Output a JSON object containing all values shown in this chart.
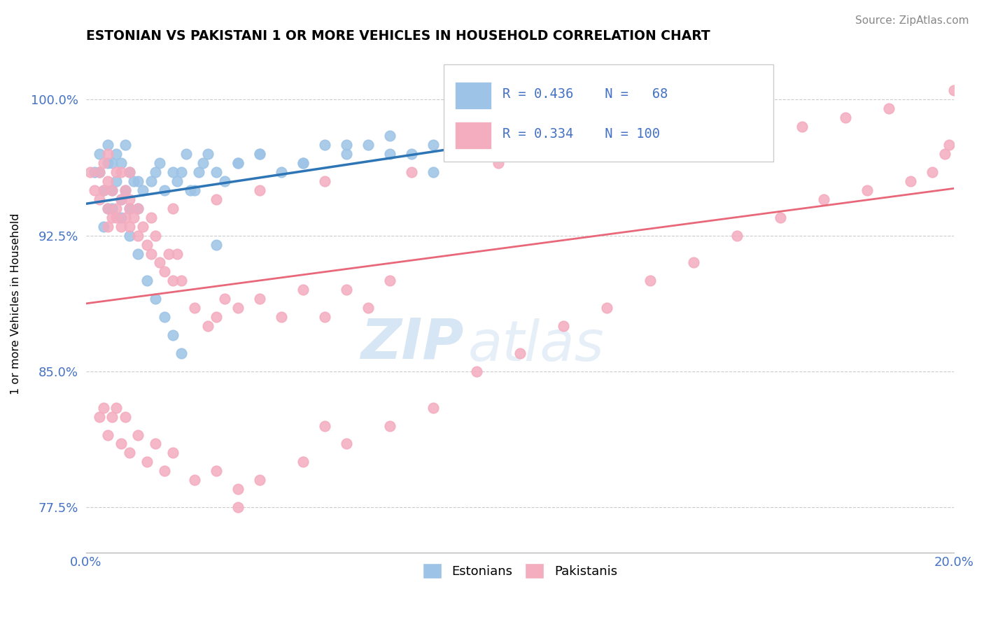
{
  "title": "ESTONIAN VS PAKISTANI 1 OR MORE VEHICLES IN HOUSEHOLD CORRELATION CHART",
  "source_text": "Source: ZipAtlas.com",
  "ylabel": "1 or more Vehicles in Household",
  "xlim": [
    0.0,
    20.0
  ],
  "ylim": [
    75.0,
    102.5
  ],
  "yticks": [
    77.5,
    85.0,
    92.5,
    100.0
  ],
  "ytick_labels": [
    "77.5%",
    "85.0%",
    "92.5%",
    "100.0%"
  ],
  "xticks": [
    0.0,
    5.0,
    10.0,
    15.0,
    20.0
  ],
  "xtick_labels": [
    "0.0%",
    "",
    "",
    "",
    "20.0%"
  ],
  "estonian_color": "#9DC3E6",
  "pakistani_color": "#F4ACBF",
  "estonian_line_color": "#2E75B6",
  "pakistani_line_color": "#E8687A",
  "watermark_text": "ZIPatlas",
  "watermark_color": "#C8DDF0",
  "estonian_x": [
    0.2,
    0.3,
    0.4,
    0.5,
    0.5,
    0.6,
    0.7,
    0.7,
    0.8,
    0.8,
    0.9,
    0.9,
    1.0,
    1.0,
    1.1,
    1.2,
    1.3,
    1.5,
    1.6,
    1.7,
    1.8,
    2.0,
    2.1,
    2.2,
    2.3,
    2.5,
    2.7,
    3.0,
    3.2,
    3.5,
    4.0,
    4.5,
    5.0,
    5.5,
    6.0,
    6.5,
    7.0,
    7.5,
    8.0,
    9.0,
    10.0,
    11.0,
    13.0,
    14.0,
    0.4,
    0.5,
    0.6,
    0.8,
    1.0,
    1.2,
    1.4,
    1.6,
    1.8,
    2.0,
    2.2,
    2.4,
    2.6,
    2.8,
    3.0,
    3.5,
    4.0,
    5.0,
    6.0,
    7.0,
    8.0,
    0.3,
    0.6,
    1.2
  ],
  "estonian_y": [
    96.0,
    97.0,
    95.0,
    96.5,
    97.5,
    94.0,
    95.5,
    97.0,
    94.5,
    96.5,
    95.0,
    97.5,
    94.0,
    96.0,
    95.5,
    94.0,
    95.0,
    95.5,
    96.0,
    96.5,
    95.0,
    96.0,
    95.5,
    96.0,
    97.0,
    95.0,
    96.5,
    96.0,
    95.5,
    96.5,
    97.0,
    96.0,
    96.5,
    97.5,
    97.0,
    97.5,
    98.0,
    97.0,
    97.5,
    97.5,
    97.0,
    97.5,
    98.0,
    100.5,
    93.0,
    94.0,
    95.0,
    93.5,
    92.5,
    91.5,
    90.0,
    89.0,
    88.0,
    87.0,
    86.0,
    95.0,
    96.0,
    97.0,
    92.0,
    96.5,
    97.0,
    96.5,
    97.5,
    97.0,
    96.0,
    96.0,
    96.5,
    95.5
  ],
  "pakistani_x": [
    0.1,
    0.2,
    0.3,
    0.3,
    0.4,
    0.4,
    0.5,
    0.5,
    0.5,
    0.6,
    0.6,
    0.7,
    0.7,
    0.8,
    0.8,
    0.8,
    0.9,
    0.9,
    1.0,
    1.0,
    1.0,
    1.1,
    1.2,
    1.2,
    1.3,
    1.4,
    1.5,
    1.6,
    1.7,
    1.8,
    1.9,
    2.0,
    2.1,
    2.2,
    2.5,
    2.8,
    3.0,
    3.2,
    3.5,
    4.0,
    4.5,
    5.0,
    5.5,
    6.0,
    6.5,
    7.0,
    0.3,
    0.4,
    0.5,
    0.6,
    0.7,
    0.8,
    0.9,
    1.0,
    1.2,
    1.4,
    1.6,
    1.8,
    2.0,
    2.5,
    3.0,
    3.5,
    4.0,
    5.0,
    6.0,
    7.0,
    8.0,
    9.0,
    10.0,
    11.0,
    12.0,
    13.0,
    14.0,
    15.0,
    16.0,
    17.0,
    18.0,
    19.0,
    19.5,
    19.8,
    19.9,
    20.0,
    0.5,
    0.7,
    1.0,
    1.5,
    2.0,
    3.0,
    4.0,
    5.5,
    7.5,
    9.5,
    11.5,
    13.5,
    15.5,
    16.5,
    17.5,
    18.5,
    3.5,
    5.5
  ],
  "pakistani_y": [
    96.0,
    95.0,
    94.5,
    96.0,
    95.0,
    96.5,
    94.0,
    95.5,
    97.0,
    93.5,
    95.0,
    94.0,
    96.0,
    93.0,
    94.5,
    96.0,
    93.5,
    95.0,
    93.0,
    94.5,
    96.0,
    93.5,
    92.5,
    94.0,
    93.0,
    92.0,
    91.5,
    92.5,
    91.0,
    90.5,
    91.5,
    90.0,
    91.5,
    90.0,
    88.5,
    87.5,
    88.0,
    89.0,
    88.5,
    89.0,
    88.0,
    89.5,
    88.0,
    89.5,
    88.5,
    90.0,
    82.5,
    83.0,
    81.5,
    82.5,
    83.0,
    81.0,
    82.5,
    80.5,
    81.5,
    80.0,
    81.0,
    79.5,
    80.5,
    79.0,
    79.5,
    78.5,
    79.0,
    80.0,
    81.0,
    82.0,
    83.0,
    85.0,
    86.0,
    87.5,
    88.5,
    90.0,
    91.0,
    92.5,
    93.5,
    94.5,
    95.0,
    95.5,
    96.0,
    97.0,
    97.5,
    100.5,
    93.0,
    93.5,
    94.0,
    93.5,
    94.0,
    94.5,
    95.0,
    95.5,
    96.0,
    96.5,
    97.0,
    97.5,
    98.0,
    98.5,
    99.0,
    99.5,
    77.5,
    82.0
  ]
}
